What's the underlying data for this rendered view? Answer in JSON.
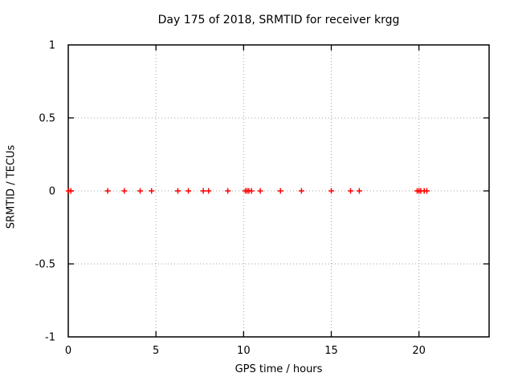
{
  "chart_data": {
    "type": "scatter",
    "title": "Day 175 of 2018, SRMTID for receiver krgg",
    "xlabel": "GPS time / hours",
    "ylabel": "SRMTID / TECUs",
    "xlim": [
      0,
      24
    ],
    "ylim": [
      -1,
      1
    ],
    "xticks": [
      0,
      5,
      10,
      15,
      20
    ],
    "yticks": [
      -1,
      -0.5,
      0,
      0.5,
      1
    ],
    "grid": true,
    "legend": "none",
    "marker": "plus",
    "marker_color": "#ff0000",
    "grid_color": "#a0a0a0",
    "border_color": "#000000",
    "background_color": "#ffffff",
    "series": [
      {
        "name": "SRMTID",
        "x": [
          0.02,
          0.15,
          2.25,
          3.2,
          4.1,
          4.75,
          6.25,
          6.85,
          7.7,
          8.0,
          9.1,
          10.1,
          10.2,
          10.3,
          10.45,
          10.95,
          12.1,
          13.3,
          15.0,
          16.1,
          16.6,
          19.9,
          20.0,
          20.1,
          20.3,
          20.45
        ],
        "y": [
          0,
          0,
          0,
          0,
          0,
          0,
          0,
          0,
          0,
          0,
          0,
          0,
          0,
          0,
          0,
          0,
          0,
          0,
          0,
          0,
          0,
          0,
          0,
          0,
          0,
          0
        ]
      }
    ]
  }
}
